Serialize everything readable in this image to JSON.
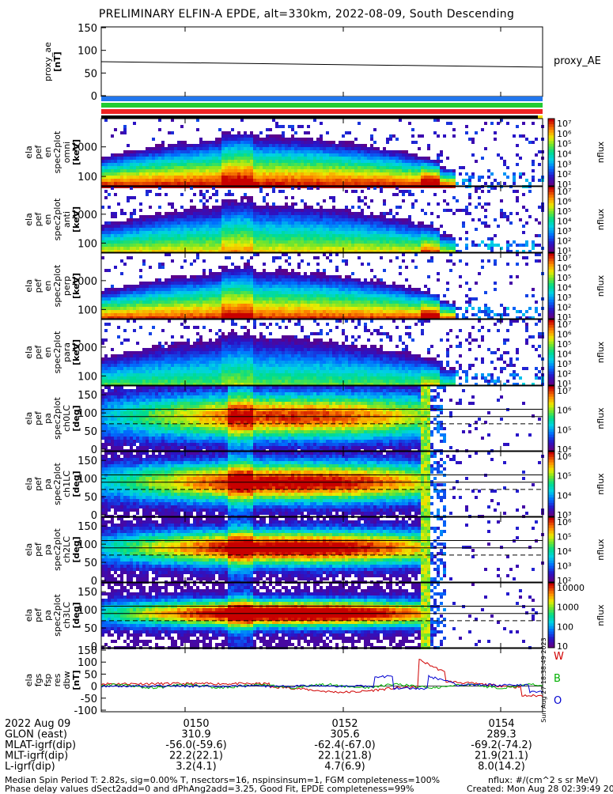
{
  "title": "PRELIMINARY ELFIN-A EPDE, alt=330km, 2022-08-09, South Descending",
  "panels": {
    "ae": {
      "ylabel": [
        "proxy_ae",
        "[nT]"
      ],
      "yticks": [
        "150",
        "100",
        "50",
        "0"
      ],
      "series_label": "proxy_AE"
    },
    "spec": [
      {
        "ylabel": [
          "ela",
          "pef",
          "en",
          "spec2plot",
          "omni",
          "[keV]"
        ],
        "yticks": [
          "1000",
          "100"
        ]
      },
      {
        "ylabel": [
          "ela",
          "pef",
          "en",
          "spec2plot",
          "anti",
          "[keV]"
        ],
        "yticks": [
          "1000",
          "100"
        ]
      },
      {
        "ylabel": [
          "ela",
          "pef",
          "en",
          "spec2plot",
          "perp",
          "[keV]"
        ],
        "yticks": [
          "1000",
          "100"
        ]
      },
      {
        "ylabel": [
          "ela",
          "pef",
          "en",
          "spec2plot",
          "para",
          "[keV]"
        ],
        "yticks": [
          "1000",
          "100"
        ]
      }
    ],
    "pa": [
      {
        "ylabel": [
          "ela",
          "pef",
          "pa",
          "spec2plot",
          "ch0LC",
          "[deg]"
        ],
        "yticks": [
          "150",
          "100",
          "50",
          "0"
        ]
      },
      {
        "ylabel": [
          "ela",
          "pef",
          "pa",
          "spec2plot",
          "ch1LC",
          "[deg]"
        ],
        "yticks": [
          "150",
          "100",
          "50",
          "0"
        ]
      },
      {
        "ylabel": [
          "ela",
          "pef",
          "pa",
          "spec2plot",
          "ch2LC",
          "[deg]"
        ],
        "yticks": [
          "150",
          "100",
          "50",
          "0"
        ]
      },
      {
        "ylabel": [
          "ela",
          "pef",
          "pa",
          "spec2plot",
          "ch3LC",
          "[deg]"
        ],
        "yticks": [
          "150",
          "100",
          "50",
          "0"
        ]
      }
    ],
    "fgs": {
      "ylabel": [
        "ela",
        "fgs",
        "fsp",
        "res",
        "dbw",
        "[nT]"
      ],
      "yticks": [
        "150",
        "100",
        "50",
        "0",
        "-50",
        "-100"
      ],
      "legend": [
        {
          "label": "W",
          "color": "#d00000"
        },
        {
          "label": "B",
          "color": "#00b000"
        },
        {
          "label": "O",
          "color": "#0000d0"
        }
      ],
      "side_label": "Sun Aug 27 18:38:49 2023"
    },
    "colorbars": [
      {
        "label": "nflux",
        "ticks": [
          "10⁷",
          "10⁶",
          "10⁵",
          "10⁴",
          "10³",
          "10²",
          "10¹"
        ]
      },
      {
        "label": "nflux",
        "ticks": [
          "10⁷",
          "10⁶",
          "10⁵",
          "10⁴",
          "10³",
          "10²",
          "10¹"
        ]
      },
      {
        "label": "nflux",
        "ticks": [
          "10⁷",
          "10⁶",
          "10⁵",
          "10⁴",
          "10³",
          "10²",
          "10¹"
        ]
      },
      {
        "label": "nflux",
        "ticks": [
          "10⁷",
          "10⁶",
          "10⁵",
          "10⁴",
          "10³",
          "10²",
          "10¹"
        ]
      },
      {
        "label": "nflux",
        "ticks": [
          "10⁷",
          "10⁶",
          "10⁵",
          "10⁴"
        ]
      },
      {
        "label": "nflux",
        "ticks": [
          "10⁶",
          "10⁵",
          "10⁴",
          "10³"
        ]
      },
      {
        "label": "nflux",
        "ticks": [
          "10⁶",
          "10⁵",
          "10⁴",
          "10³",
          "10²"
        ]
      },
      {
        "label": "nflux",
        "ticks": [
          "10000",
          "1000",
          "100",
          "10"
        ]
      }
    ]
  },
  "axis": {
    "rows": [
      {
        "label": "2022 Aug 09",
        "values": [
          "0150",
          "0152",
          "0154"
        ]
      },
      {
        "label": "GLON (east)",
        "values": [
          "310.9",
          "305.6",
          "289.3"
        ]
      },
      {
        "label": "MLAT-igrf(dip)",
        "values": [
          "-56.0(-59.6)",
          "-62.4(-67.0)",
          "-69.2(-74.2)"
        ]
      },
      {
        "label": "MLT-igrf(dip)",
        "values": [
          "22.2(22.1)",
          "22.1(21.8)",
          "21.9(21.1)"
        ]
      },
      {
        "label": "L-igrf(dip)",
        "values": [
          "3.2(4.1)",
          "4.7(6.9)",
          "8.0(14.2)"
        ]
      }
    ]
  },
  "footer": {
    "left1": "Median Spin Period T: 2.82s, sig=0.00% T, nsectors=16, nspinsinsum=1, FGM completeness=100%",
    "left2": "Phase delay values dSect2add=0 and dPhAng2add=3.25, Good Fit, EPDE completeness=99%",
    "right1": "nflux: #/(cm^2 s sr MeV)",
    "right2": "Created: Mon Aug 28 02:39:49 2023"
  },
  "chart_data": {
    "type": "heatmap",
    "x_range": [
      "0148",
      "0155"
    ],
    "x_ticks": [
      "0150",
      "0152",
      "0154"
    ],
    "proxy_ae": {
      "type": "line",
      "x": [
        "0148",
        "0155"
      ],
      "y": [
        75,
        63
      ],
      "ylim": [
        0,
        150
      ]
    },
    "orbit_bars": [
      "#2277ee",
      "#22cc33",
      "#ee2222"
    ],
    "energy_spectrograms": {
      "ylim_keV": [
        60,
        7000
      ],
      "scale": "log",
      "color_range": [
        "10^1",
        "10^7"
      ]
    },
    "pitch_angle_spectrograms": {
      "ylim_deg": [
        0,
        180
      ],
      "loss_cone_lines_deg": [
        70,
        90,
        110
      ]
    },
    "fgs": {
      "type": "line",
      "ylim": [
        -100,
        150
      ],
      "series": [
        {
          "name": "W",
          "color": "#d00000"
        },
        {
          "name": "B",
          "color": "#00b000"
        },
        {
          "name": "O",
          "color": "#0000d0"
        }
      ]
    }
  }
}
